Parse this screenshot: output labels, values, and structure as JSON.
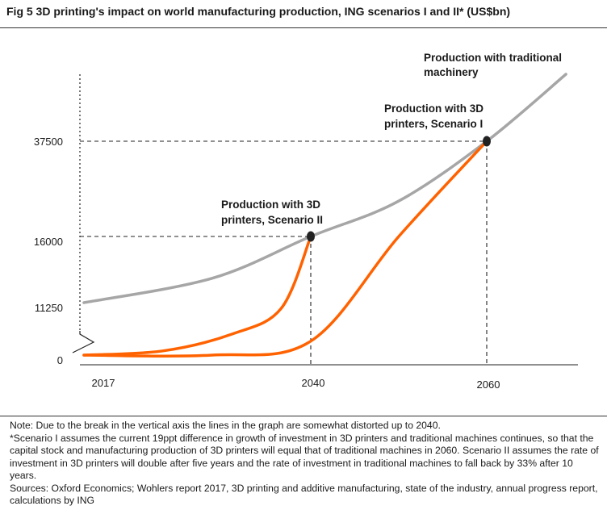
{
  "title": "Fig 5   3D printing's impact on world manufacturing production, ING scenarios I and II* (US$bn)",
  "chart_data": {
    "type": "line",
    "title": "3D printing's impact on world manufacturing production, ING scenarios I and II* (US$bn)",
    "xlabel": "",
    "ylabel": "",
    "x_ticks": [
      "2017",
      "2040",
      "2060"
    ],
    "y_ticks": [
      "0",
      "11250",
      "16000",
      "37500"
    ],
    "y_axis_break": true,
    "grid": false,
    "series": [
      {
        "color": "#a6a6a6",
        "points": [
          [
            2017,
            11250
          ],
          [
            2030,
            13000
          ],
          [
            2040,
            16000
          ],
          [
            2050,
            24000
          ],
          [
            2060,
            37500
          ],
          [
            2069,
            51000
          ]
        ]
      },
      {
        "color": "#ff6200",
        "points": [
          [
            2017,
            0
          ],
          [
            2025,
            900
          ],
          [
            2032,
            4500
          ],
          [
            2037,
            10000
          ],
          [
            2040,
            16000
          ]
        ]
      },
      {
        "color": "#ff6200",
        "points": [
          [
            2017,
            0
          ],
          [
            2030,
            0
          ],
          [
            2040,
            3000
          ],
          [
            2050,
            16000
          ],
          [
            2060,
            37500
          ]
        ]
      }
    ],
    "markers": [
      {
        "x": 2040,
        "y": 16000,
        "label": "Production with 3D printers, Scenario II"
      },
      {
        "x": 2060,
        "y": 37500,
        "label": "Production with 3D printers, Scenario I"
      }
    ],
    "annotations": [
      {
        "label_lines": [
          "Production with traditional",
          "machinery"
        ]
      },
      {
        "label_lines": [
          "Production with 3D",
          "printers, Scenario I"
        ]
      },
      {
        "label_lines": [
          "Production with 3D",
          "printers, Scenario II"
        ]
      }
    ]
  },
  "notes": [
    "Note: Due to the break in the vertical axis the lines in the graph are somewhat distorted up to 2040.",
    "*Scenario I assumes the current 19ppt difference in growth of investment in 3D printers and traditional machines continues, so that the capital stock and manufacturing production of 3D printers will equal that of traditional machines in 2060. Scenario II assumes the rate of investment in 3D printers will double after five years and the rate of investment in traditional machines to fall back by 33% after 10 years.",
    "Sources: Oxford Economics; Wohlers report 2017, 3D printing and additive manufacturing, state of the industry, annual progress report, calculations by ING"
  ],
  "colors": {
    "orange": "#ff6200",
    "grey": "#a6a6a6"
  }
}
